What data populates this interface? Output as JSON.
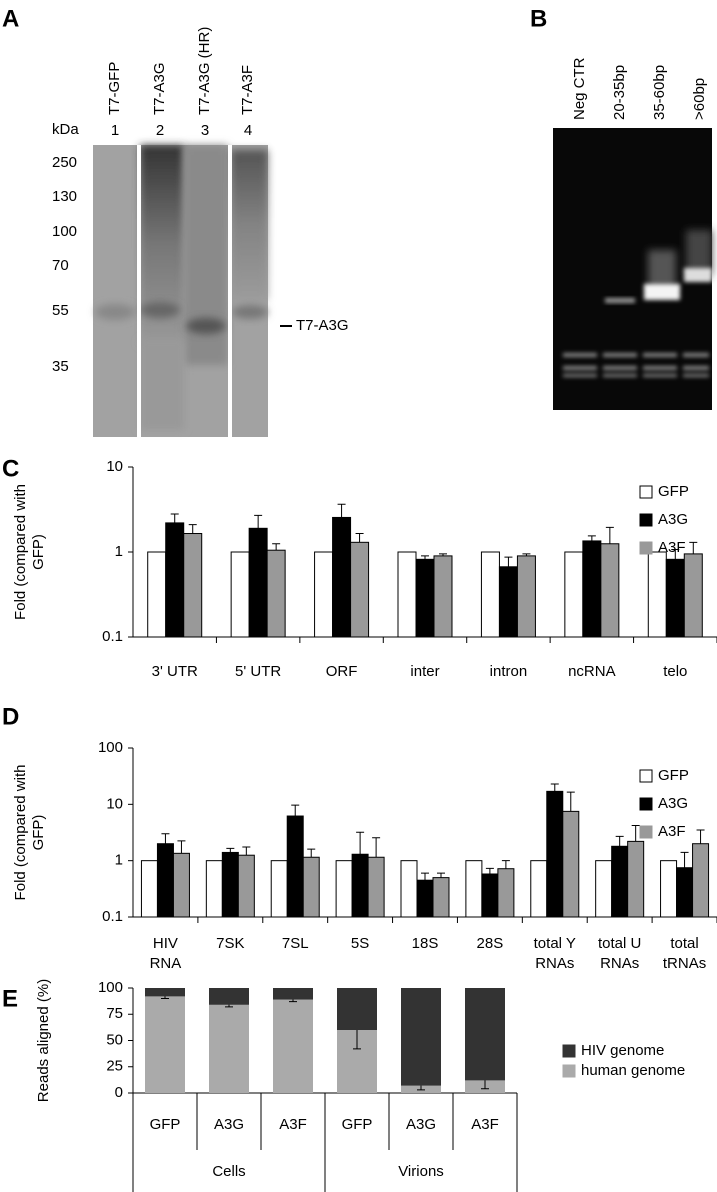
{
  "panel_a": {
    "label": "A",
    "unit": "kDa",
    "lanes": [
      {
        "name": "T7-GFP",
        "number": 1
      },
      {
        "name": "T7-A3G",
        "number": 2
      },
      {
        "name": "T7-A3G (HR)",
        "number": 3
      },
      {
        "name": "T7-A3F",
        "number": 4
      }
    ],
    "markers": [
      250,
      130,
      100,
      70,
      55,
      35
    ],
    "band_label": "T7-A3G"
  },
  "panel_b": {
    "label": "B",
    "lanes": [
      "Neg CTR",
      "20-35bp",
      "35-60bp",
      ">60bp"
    ]
  },
  "chart_data": [
    {
      "type": "bar",
      "panel": "C",
      "y_label": [
        "Fold (compared with",
        "GFP)"
      ],
      "log_scale": true,
      "ylim": [
        0.1,
        10
      ],
      "yticks": [
        0.1,
        1,
        10
      ],
      "legend": "upper right",
      "categories": [
        [
          "3' UTR"
        ],
        [
          "5' UTR"
        ],
        [
          "ORF"
        ],
        [
          "inter"
        ],
        [
          "intron"
        ],
        [
          "ncRNA"
        ],
        [
          "telo"
        ]
      ],
      "series": [
        {
          "name": "GFP",
          "color": "#ffffff",
          "values": [
            1,
            1,
            1,
            1,
            1,
            1,
            1
          ]
        },
        {
          "name": "A3G",
          "color": "#000000",
          "values": [
            2.2,
            1.9,
            2.55,
            0.82,
            0.67,
            1.35,
            0.82
          ],
          "errors": [
            0.6,
            0.8,
            1.1,
            0.08,
            0.2,
            0.2,
            0.25
          ]
        },
        {
          "name": "A3F",
          "color": "#999999",
          "values": [
            1.65,
            1.05,
            1.3,
            0.9,
            0.9,
            1.25,
            0.95
          ],
          "errors": [
            0.45,
            0.2,
            0.35,
            0.05,
            0.05,
            0.7,
            0.35
          ]
        }
      ]
    },
    {
      "type": "bar",
      "panel": "D",
      "y_label": [
        "Fold (compared with",
        "GFP)"
      ],
      "log_scale": true,
      "ylim": [
        0.1,
        100
      ],
      "yticks": [
        0.1,
        1,
        10,
        100
      ],
      "legend": "upper right",
      "categories": [
        [
          "HIV",
          "RNA"
        ],
        [
          "7SK"
        ],
        [
          "7SL"
        ],
        [
          "5S"
        ],
        [
          "18S"
        ],
        [
          "28S"
        ],
        [
          "total Y",
          "RNAs"
        ],
        [
          "total U",
          "RNAs"
        ],
        [
          "total",
          "tRNAs"
        ]
      ],
      "series": [
        {
          "name": "GFP",
          "color": "#ffffff",
          "values": [
            1,
            1,
            1,
            1,
            1,
            1,
            1,
            1,
            1
          ]
        },
        {
          "name": "A3G",
          "color": "#000000",
          "values": [
            2.0,
            1.4,
            6.2,
            1.3,
            0.45,
            0.58,
            17,
            1.8,
            0.75
          ],
          "errors": [
            1.0,
            0.25,
            3.5,
            1.9,
            0.15,
            0.15,
            6,
            0.9,
            0.65
          ]
        },
        {
          "name": "A3F",
          "color": "#999999",
          "values": [
            1.35,
            1.25,
            1.15,
            1.15,
            0.5,
            0.72,
            7.5,
            2.2,
            2.0
          ],
          "errors": [
            0.9,
            0.5,
            0.45,
            1.4,
            0.1,
            0.28,
            9,
            2,
            1.5
          ]
        }
      ]
    },
    {
      "type": "stacked_bar",
      "panel": "E",
      "y_label": [
        "Reads aligned (%)"
      ],
      "ylim": [
        0,
        100
      ],
      "yticks": [
        0,
        25,
        50,
        75,
        100
      ],
      "legend": "right",
      "categories": [
        [
          "GFP"
        ],
        [
          "A3G"
        ],
        [
          "A3F"
        ],
        [
          "GFP"
        ],
        [
          "A3G"
        ],
        [
          "A3F"
        ]
      ],
      "groups": [
        "Cells",
        "Virions"
      ],
      "series": [
        {
          "name": "HIV genome",
          "color": "#333333",
          "values": [
            8,
            16,
            11,
            40,
            93,
            88
          ]
        },
        {
          "name": "human genome",
          "color": "#aaaaaa",
          "values": [
            92,
            84,
            89,
            60,
            7,
            12
          ],
          "errors": [
            2,
            2,
            2,
            18,
            4,
            8
          ]
        }
      ]
    }
  ]
}
